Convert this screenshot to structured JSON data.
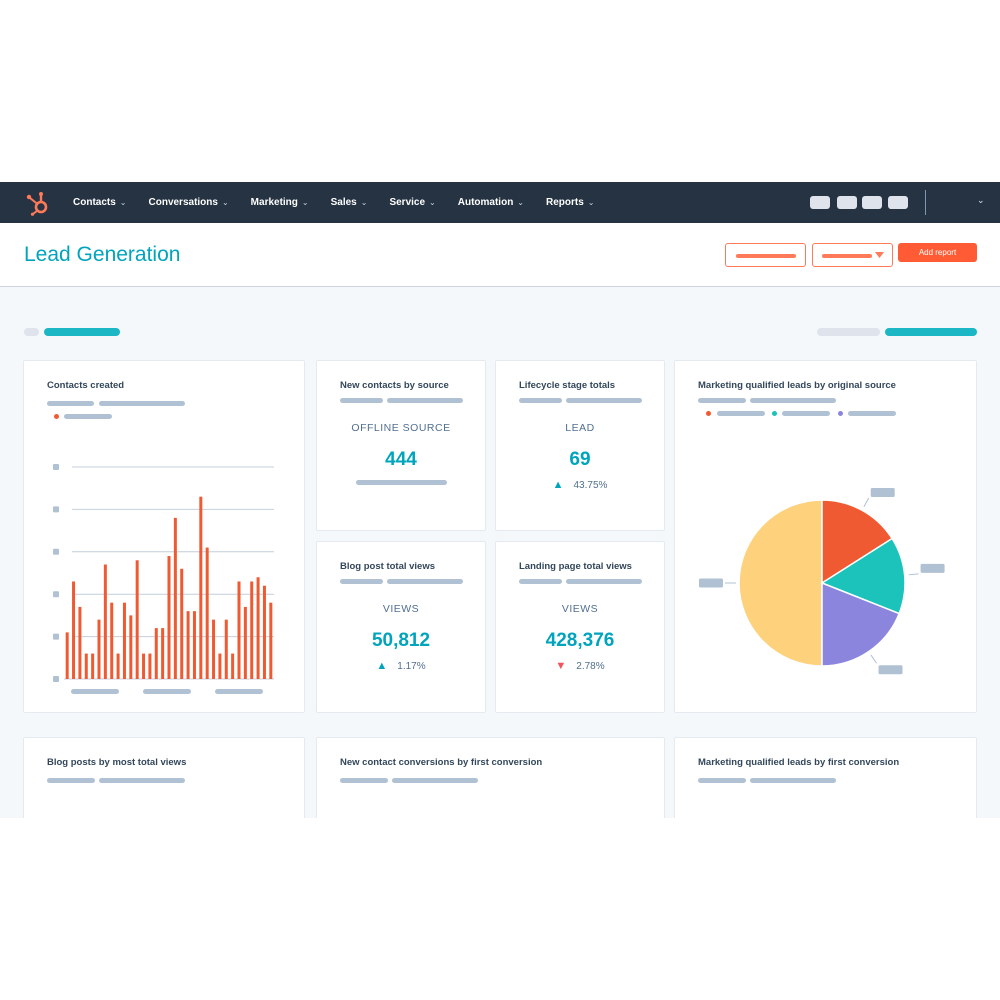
{
  "nav": {
    "items": [
      {
        "label": "Contacts",
        "name": "nav-contacts"
      },
      {
        "label": "Conversations",
        "name": "nav-conversations"
      },
      {
        "label": "Marketing",
        "name": "nav-marketing"
      },
      {
        "label": "Sales",
        "name": "nav-sales"
      },
      {
        "label": "Service",
        "name": "nav-service"
      },
      {
        "label": "Automation",
        "name": "nav-automation"
      },
      {
        "label": "Reports",
        "name": "nav-reports"
      }
    ]
  },
  "header": {
    "title": "Lead Generation",
    "add_report_label": "Add report"
  },
  "cards": {
    "contacts_created": {
      "title": "Contacts created"
    },
    "new_contacts_by_source": {
      "title": "New contacts by source",
      "label": "OFFLINE SOURCE",
      "value": "444"
    },
    "lifecycle_stage_totals": {
      "title": "Lifecycle stage totals",
      "label": "LEAD",
      "value": "69",
      "delta": "43.75%",
      "direction": "up"
    },
    "blog_post_total_views": {
      "title": "Blog post total views",
      "label": "VIEWS",
      "value": "50,812",
      "delta": "1.17%",
      "direction": "up"
    },
    "landing_page_total_views": {
      "title": "Landing page total views",
      "label": "VIEWS",
      "value": "428,376",
      "delta": "2.78%",
      "direction": "down"
    },
    "mql_by_original_source": {
      "title": "Marketing qualified leads by original source"
    },
    "blog_posts_by_most_views": {
      "title": "Blog posts by most total views"
    },
    "new_contact_conversions": {
      "title": "New contact conversions by first conversion"
    },
    "mql_by_first_conversion": {
      "title": "Marketing qualified leads by first conversion"
    }
  },
  "colors": {
    "accent": "#00a4bd",
    "brand": "#ff7a59",
    "bar": "#f05a32",
    "nav_bg": "#253342"
  },
  "chart_data": [
    {
      "type": "bar",
      "title": "Contacts created",
      "values": [
        11,
        23,
        17,
        6,
        6,
        14,
        27,
        18,
        6,
        18,
        15,
        28,
        6,
        6,
        12,
        12,
        29,
        38,
        26,
        16,
        16,
        43,
        31,
        14,
        6,
        14,
        6,
        23,
        17,
        23,
        24,
        22,
        18
      ],
      "ylim": [
        0,
        50
      ],
      "grid": true,
      "colors": [
        "#f05a32"
      ]
    },
    {
      "type": "pie",
      "title": "Marketing qualified leads by original source",
      "values": [
        50,
        16,
        15,
        19
      ],
      "colors": [
        "#fed17d",
        "#f05a32",
        "#1bc3bb",
        "#8b85de"
      ]
    }
  ]
}
